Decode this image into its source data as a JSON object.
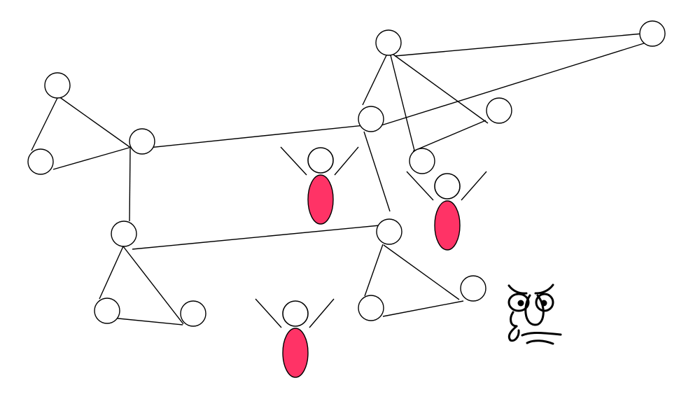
{
  "diagram": {
    "colors": {
      "background": "#ffffff",
      "stroke": "#000000",
      "body_fill": "#ff3366"
    },
    "node_count": 17,
    "link_count": 21,
    "figure_count": 3,
    "face_icon": "grumpy-face-icon"
  }
}
